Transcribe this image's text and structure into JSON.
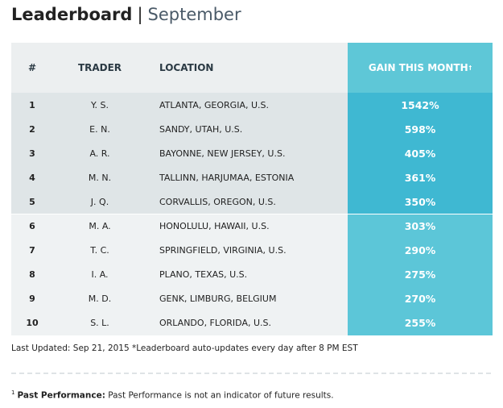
{
  "header": {
    "title": "Leaderboard",
    "separator": "|",
    "subtitle": "September"
  },
  "table": {
    "columns": [
      "#",
      "TRADER",
      "LOCATION",
      "GAIN THIS MONTH"
    ],
    "gain_mark": "†",
    "rows": [
      [
        "1",
        "Y. S.",
        "ATLANTA, GEORGIA, U.S.",
        "1542%"
      ],
      [
        "2",
        "E. N.",
        "SANDY, UTAH, U.S.",
        "598%"
      ],
      [
        "3",
        "A. R.",
        "BAYONNE, NEW JERSEY, U.S.",
        "405%"
      ],
      [
        "4",
        "M. N.",
        "TALLINN, HARJUMAA, ESTONIA",
        "361%"
      ],
      [
        "5",
        "J. Q.",
        "CORVALLIS, OREGON, U.S.",
        "350%"
      ],
      [
        "6",
        "M. A.",
        "HONOLULU, HAWAII, U.S.",
        "303%"
      ],
      [
        "7",
        "T. C.",
        "SPRINGFIELD, VIRGINIA, U.S.",
        "290%"
      ],
      [
        "8",
        "I. A.",
        "PLANO, TEXAS, U.S.",
        "275%"
      ],
      [
        "9",
        "M. D.",
        "GENK, LIMBURG, BELGIUM",
        "270%"
      ],
      [
        "10",
        "S. L.",
        "ORLANDO, FLORIDA, U.S.",
        "255%"
      ]
    ]
  },
  "footer": {
    "updated": "Last Updated: Sep 21, 2015 *Leaderboard auto-updates every day after 8 PM EST"
  },
  "footnote": {
    "marker": "1",
    "label": "Past Performance:",
    "text": "Past Performance is not an indicator of future results."
  }
}
